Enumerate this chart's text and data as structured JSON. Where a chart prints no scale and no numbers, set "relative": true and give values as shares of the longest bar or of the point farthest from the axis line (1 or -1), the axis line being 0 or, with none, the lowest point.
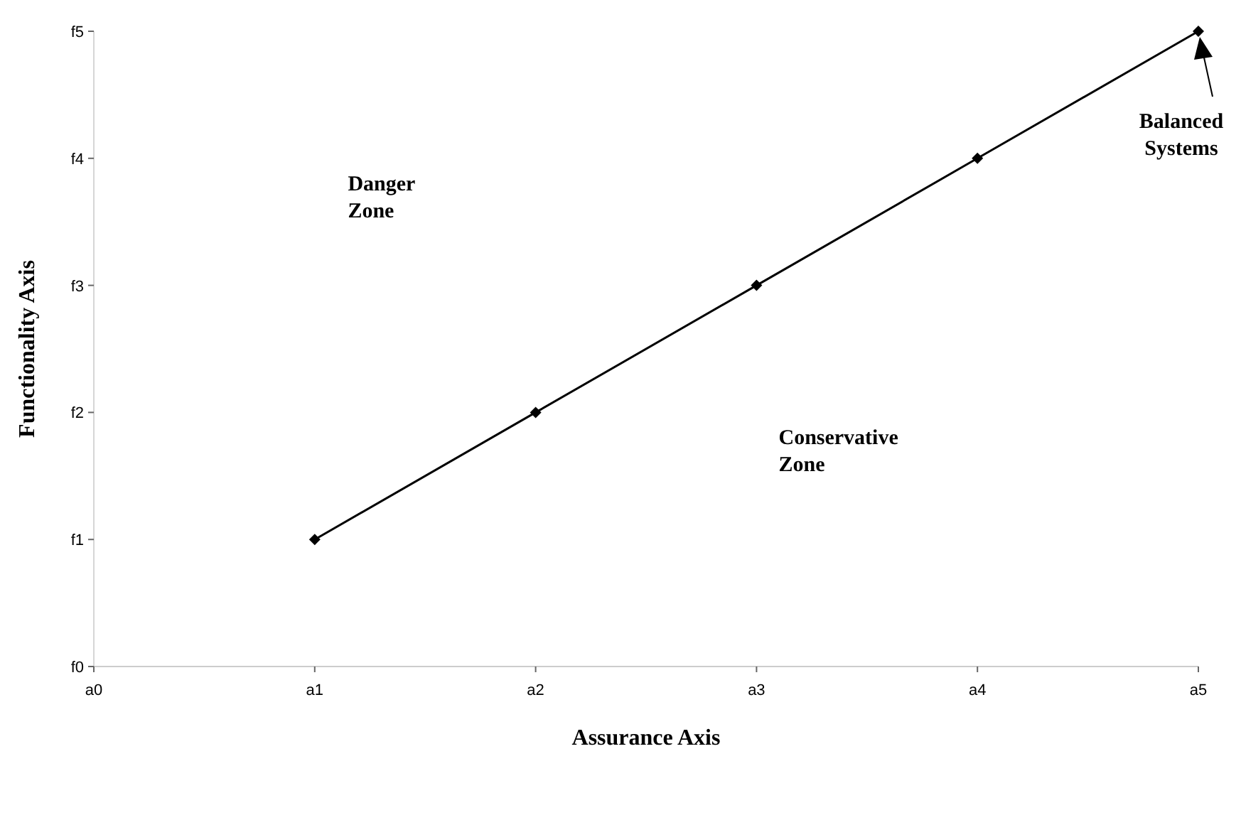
{
  "chart_data": {
    "type": "line",
    "xlabel": "Assurance Axis",
    "ylabel": "Functionality Axis",
    "categories": [
      "a0",
      "a1",
      "a2",
      "a3",
      "a4",
      "a5"
    ],
    "values": [
      null,
      0.2,
      0.4,
      0.6,
      0.8,
      1
    ],
    "relative": true,
    "color": "#000000",
    "marker": "diamond",
    "line_style": "solid",
    "grid": false,
    "legend": false,
    "annotations": [
      "Danger Zone",
      "Conservative Zone",
      "Balanced Systems",
      "f0",
      "f1",
      "f2",
      "f3",
      "f4",
      "f5"
    ]
  }
}
